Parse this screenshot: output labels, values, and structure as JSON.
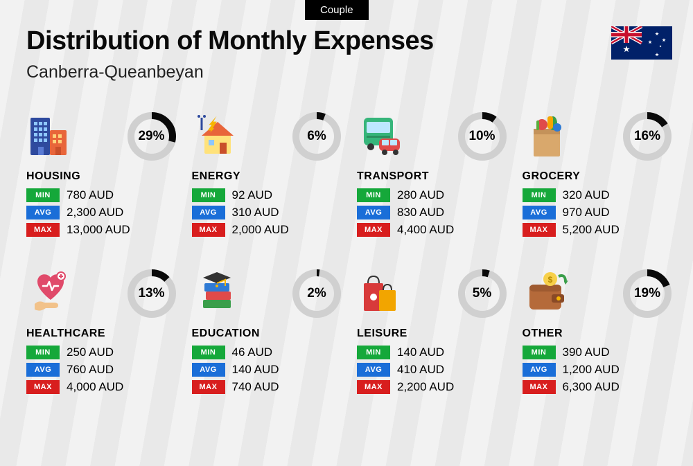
{
  "tag_label": "Couple",
  "title": "Distribution of Monthly Expenses",
  "subtitle": "Canberra-Queanbeyan",
  "currency": "AUD",
  "donut": {
    "radius": 30,
    "stroke": 10,
    "track_color": "#d0d0d0",
    "arc_color": "#0a0a0a"
  },
  "badges": {
    "min": "MIN",
    "avg": "AVG",
    "max": "MAX"
  },
  "badge_colors": {
    "min": "#15a83a",
    "avg": "#1a6ed8",
    "max": "#d81e1e"
  },
  "categories": [
    {
      "key": "housing",
      "name": "HOUSING",
      "pct": 29,
      "min": "780",
      "avg": "2,300",
      "max": "13,000",
      "icon": "buildings"
    },
    {
      "key": "energy",
      "name": "ENERGY",
      "pct": 6,
      "min": "92",
      "avg": "310",
      "max": "2,000",
      "icon": "energy-house"
    },
    {
      "key": "transport",
      "name": "TRANSPORT",
      "pct": 10,
      "min": "280",
      "avg": "830",
      "max": "4,400",
      "icon": "bus-car"
    },
    {
      "key": "grocery",
      "name": "GROCERY",
      "pct": 16,
      "min": "320",
      "avg": "970",
      "max": "5,200",
      "icon": "grocery-bag"
    },
    {
      "key": "healthcare",
      "name": "HEALTHCARE",
      "pct": 13,
      "min": "250",
      "avg": "760",
      "max": "4,000",
      "icon": "heart-hand"
    },
    {
      "key": "education",
      "name": "EDUCATION",
      "pct": 2,
      "min": "46",
      "avg": "140",
      "max": "740",
      "icon": "grad-books"
    },
    {
      "key": "leisure",
      "name": "LEISURE",
      "pct": 5,
      "min": "140",
      "avg": "410",
      "max": "2,200",
      "icon": "shopping-bags"
    },
    {
      "key": "other",
      "name": "OTHER",
      "pct": 19,
      "min": "390",
      "avg": "1,200",
      "max": "6,300",
      "icon": "wallet"
    }
  ]
}
